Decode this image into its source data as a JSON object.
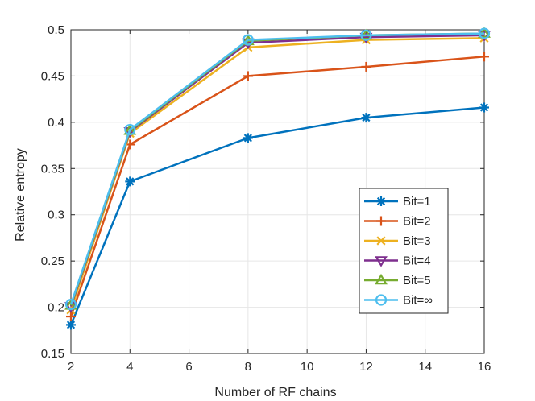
{
  "chart_data": {
    "type": "line",
    "xlabel": "Number of RF chains",
    "ylabel": "Relative entropy",
    "x": [
      2,
      4,
      8,
      12,
      16
    ],
    "x_ticks": [
      "2",
      "4",
      "6",
      "8",
      "10",
      "12",
      "14",
      "16"
    ],
    "y_ticks": [
      "0.15",
      "0.2",
      "0.25",
      "0.3",
      "0.35",
      "0.4",
      "0.45",
      "0.5"
    ],
    "xlim": [
      2,
      16
    ],
    "ylim": [
      0.15,
      0.5
    ],
    "grid": true,
    "legend_position": "bottom-right",
    "series": [
      {
        "name": "Bit=1",
        "values": [
          0.181,
          0.336,
          0.383,
          0.405,
          0.416
        ],
        "color": "#0072BD",
        "marker": "asterisk"
      },
      {
        "name": "Bit=2",
        "values": [
          0.19,
          0.376,
          0.45,
          0.46,
          0.471
        ],
        "color": "#D95319",
        "marker": "plus"
      },
      {
        "name": "Bit=3",
        "values": [
          0.197,
          0.388,
          0.481,
          0.489,
          0.491
        ],
        "color": "#EDB120",
        "marker": "x"
      },
      {
        "name": "Bit=4",
        "values": [
          0.201,
          0.39,
          0.486,
          0.492,
          0.494
        ],
        "color": "#7E2F8E",
        "marker": "triangle-down"
      },
      {
        "name": "Bit=5",
        "values": [
          0.202,
          0.391,
          0.488,
          0.494,
          0.496
        ],
        "color": "#77AC30",
        "marker": "triangle-up"
      },
      {
        "name": "Bit=∞",
        "values": [
          0.203,
          0.392,
          0.489,
          0.494,
          0.496
        ],
        "color": "#4DBEEE",
        "marker": "circle"
      }
    ]
  }
}
